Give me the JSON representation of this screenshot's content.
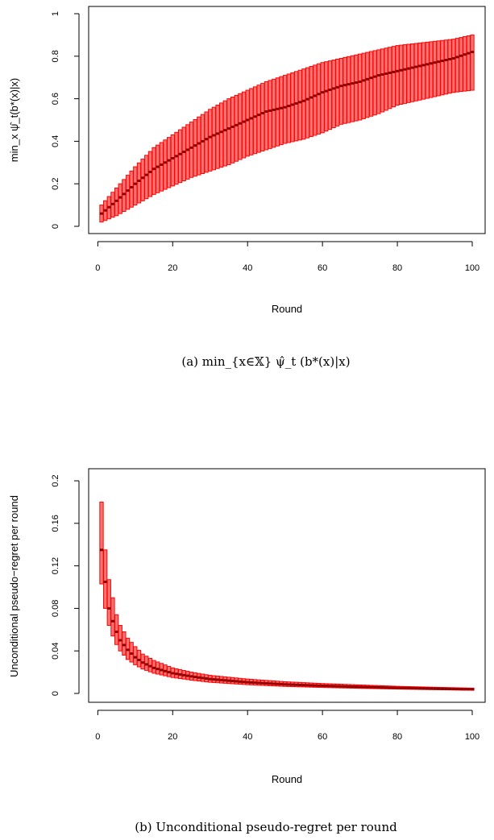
{
  "chart_data": [
    {
      "type": "line",
      "style": "red box plot per round with dark-red median marks",
      "xlabel": "Round",
      "ylabel": "min_x ψ̂_t(b*(x)|x)",
      "caption": "(a) min_{x∈𝕏} ψ̂_t (b*(x)|x)",
      "xlim": [
        1,
        100
      ],
      "ylim": [
        0,
        1
      ],
      "x_ticks": [
        "0",
        "20",
        "40",
        "60",
        "80",
        "100"
      ],
      "y_ticks": [
        "0",
        "0.2",
        "0.4",
        "0.6",
        "0.8",
        "1"
      ],
      "grid": false,
      "colors": {
        "box": "#ff0000",
        "median": "#8b0000"
      },
      "rounds": [
        1,
        5,
        10,
        15,
        20,
        25,
        30,
        35,
        40,
        45,
        50,
        55,
        60,
        65,
        70,
        75,
        80,
        85,
        90,
        95,
        100
      ],
      "median": [
        0.06,
        0.12,
        0.2,
        0.27,
        0.32,
        0.37,
        0.42,
        0.46,
        0.5,
        0.54,
        0.56,
        0.59,
        0.63,
        0.66,
        0.68,
        0.71,
        0.73,
        0.75,
        0.77,
        0.79,
        0.82
      ],
      "upper": [
        0.1,
        0.18,
        0.28,
        0.37,
        0.43,
        0.49,
        0.55,
        0.6,
        0.64,
        0.68,
        0.71,
        0.74,
        0.77,
        0.79,
        0.81,
        0.83,
        0.85,
        0.86,
        0.87,
        0.88,
        0.9
      ],
      "lower": [
        0.02,
        0.05,
        0.1,
        0.15,
        0.19,
        0.23,
        0.26,
        0.29,
        0.33,
        0.36,
        0.39,
        0.41,
        0.44,
        0.48,
        0.5,
        0.53,
        0.57,
        0.59,
        0.61,
        0.63,
        0.64
      ]
    },
    {
      "type": "line",
      "style": "red box plot per round with dark-red median marks",
      "xlabel": "Round",
      "ylabel": "Unconditional pseudo−regret per round",
      "caption": "(b) Unconditional pseudo-regret per round",
      "xlim": [
        1,
        100
      ],
      "ylim": [
        0,
        0.2
      ],
      "x_ticks": [
        "0",
        "20",
        "40",
        "60",
        "80",
        "100"
      ],
      "y_ticks": [
        "0",
        "0.04",
        "0.08",
        "0.12",
        "0.16",
        "0.2"
      ],
      "grid": false,
      "colors": {
        "box": "#ff0000",
        "median": "#8b0000"
      },
      "rounds": [
        1,
        2,
        3,
        4,
        5,
        6,
        8,
        10,
        12,
        15,
        20,
        25,
        30,
        40,
        50,
        60,
        70,
        80,
        90,
        100
      ],
      "median": [
        0.135,
        0.105,
        0.08,
        0.068,
        0.058,
        0.05,
        0.041,
        0.034,
        0.029,
        0.024,
        0.019,
        0.016,
        0.0135,
        0.0105,
        0.0085,
        0.0072,
        0.0062,
        0.0052,
        0.0045,
        0.0038
      ],
      "upper": [
        0.18,
        0.135,
        0.107,
        0.09,
        0.074,
        0.064,
        0.052,
        0.044,
        0.037,
        0.031,
        0.024,
        0.02,
        0.017,
        0.0135,
        0.011,
        0.0093,
        0.008,
        0.0067,
        0.0058,
        0.005
      ],
      "lower": [
        0.103,
        0.08,
        0.064,
        0.054,
        0.046,
        0.04,
        0.032,
        0.027,
        0.023,
        0.019,
        0.015,
        0.0125,
        0.0105,
        0.0082,
        0.0066,
        0.0056,
        0.0048,
        0.0041,
        0.0035,
        0.003
      ]
    }
  ]
}
